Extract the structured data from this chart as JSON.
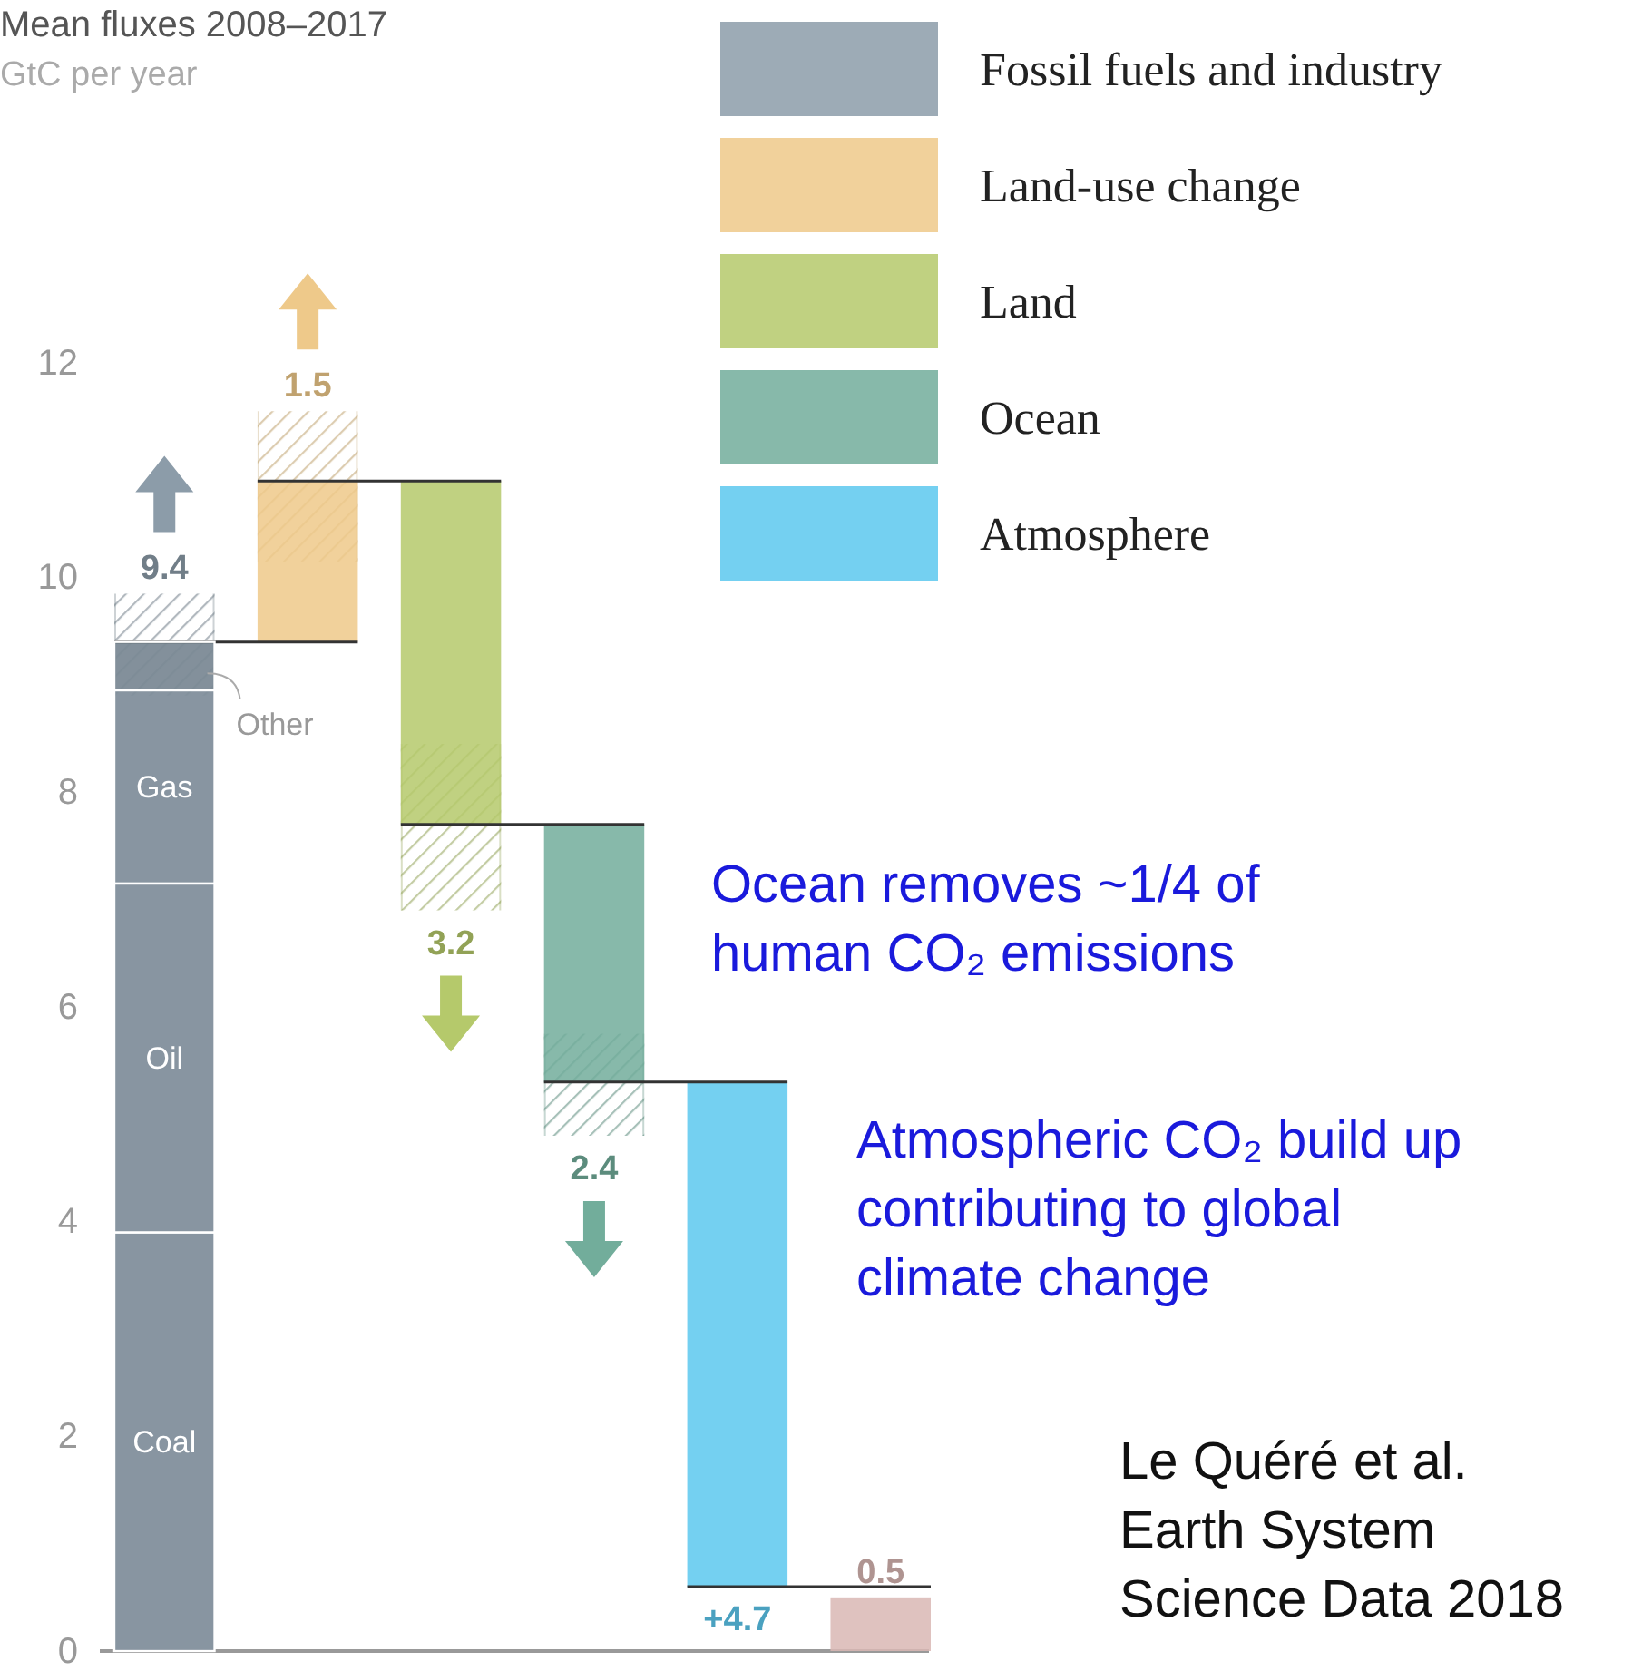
{
  "chart_data": {
    "type": "bar",
    "title": "Mean fluxes 2008–2017",
    "subtitle": "GtC per year",
    "categories": [
      null,
      null,
      null,
      null,
      null,
      null
    ],
    "ylim": [
      0,
      12
    ],
    "yticks": [
      0,
      2,
      4,
      6,
      8,
      10,
      12
    ],
    "grid": false,
    "values": [
      9.4,
      1.5,
      3.2,
      2.4,
      4.7,
      0.5
    ],
    "base": [
      0,
      9.4,
      7.7,
      5.3,
      0.6,
      0
    ],
    "colors": [
      "#8c9ca9",
      "#eec98a",
      "#b5c96b",
      "#72ad9b",
      "#5cc8ee",
      "#d9b7b4"
    ],
    "errors": [
      [
        8.9,
        9.85
      ],
      [
        10.15,
        11.55
      ],
      [
        6.9,
        8.45
      ],
      [
        4.8,
        5.75
      ],
      null,
      null
    ],
    "value_labels": [
      "9.4",
      "1.5",
      "3.2",
      "2.4",
      "+4.7",
      "0.5"
    ],
    "bands": [
      {
        "axis": "y",
        "from": 0,
        "to": 3.9,
        "label": "Coal"
      },
      {
        "axis": "y",
        "from": 3.9,
        "to": 7.15,
        "label": "Oil"
      },
      {
        "axis": "y",
        "from": 7.15,
        "to": 8.95,
        "label": "Gas"
      },
      {
        "axis": "y",
        "from": 8.95,
        "to": 9.4,
        "label": "Other"
      }
    ],
    "annotations": [
      "Fossil fuels and industry",
      "Land-use change",
      "Land",
      "Ocean",
      "Atmosphere",
      "Ocean removes ~1/4 of human CO₂ emissions",
      "Atmospheric CO₂ build up contributing to global climate change",
      "Le Quéré et al. Earth System Science Data 2018"
    ]
  }
}
